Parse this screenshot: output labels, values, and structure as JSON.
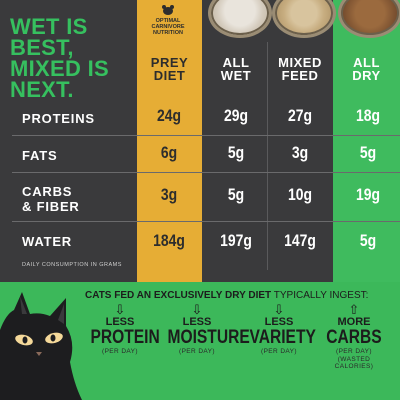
{
  "headline": [
    "WET IS",
    "BEST,",
    "MIXED IS",
    "NEXT."
  ],
  "badge": {
    "line1": "OPTIMAL",
    "line2": "CARNIVORE",
    "line3": "NUTRITION"
  },
  "columns": [
    "PREY DIET",
    "ALL WET",
    "MIXED FEED",
    "ALL DRY"
  ],
  "column_lines": [
    [
      "PREY",
      "DIET"
    ],
    [
      "ALL",
      "WET"
    ],
    [
      "MIXED",
      "FEED"
    ],
    [
      "ALL",
      "DRY"
    ]
  ],
  "rows": [
    {
      "label": "PROTEINS",
      "label_lines": [
        "PROTEINS"
      ],
      "values": [
        "24g",
        "29g",
        "27g",
        "18g"
      ]
    },
    {
      "label": "FATS",
      "label_lines": [
        "FATS"
      ],
      "values": [
        "6g",
        "5g",
        "3g",
        "5g"
      ]
    },
    {
      "label": "CARBS & FIBER",
      "label_lines": [
        "CARBS",
        "& FIBER"
      ],
      "values": [
        "3g",
        "5g",
        "10g",
        "19g"
      ]
    },
    {
      "label": "WATER",
      "label_lines": [
        "WATER"
      ],
      "values": [
        "184g",
        "197g",
        "147g",
        "5g"
      ]
    }
  ],
  "footnote": "DAILY CONSUMPTION IN GRAMS",
  "dry": {
    "prefix": "CATS FED AN EXCLUSIVELY DRY DIET",
    "suffix": " TYPICALLY INGEST:"
  },
  "items": [
    {
      "arrow": "⇩",
      "small": "LESS",
      "big": "PROTEIN",
      "per": "(PER DAY)",
      "note": ""
    },
    {
      "arrow": "⇩",
      "small": "LESS",
      "big": "MOISTURE",
      "per": "(PER DAY)",
      "note": ""
    },
    {
      "arrow": "⇩",
      "small": "LESS",
      "big": "VARIETY",
      "per": "(PER DAY)",
      "note": ""
    },
    {
      "arrow": "⇧",
      "small": "MORE",
      "big": "CARBS",
      "per": "(PER DAY)",
      "note": "(WASTED CALORIES)"
    }
  ],
  "colors": {
    "green": "#3fbb5e",
    "gold": "#e6ad35",
    "dark": "#3a3a3c"
  },
  "icons": [
    "mouse-icon",
    "cat-illustration",
    "bowl-wet-food",
    "bowl-mixed-food",
    "bowl-dry-food"
  ]
}
